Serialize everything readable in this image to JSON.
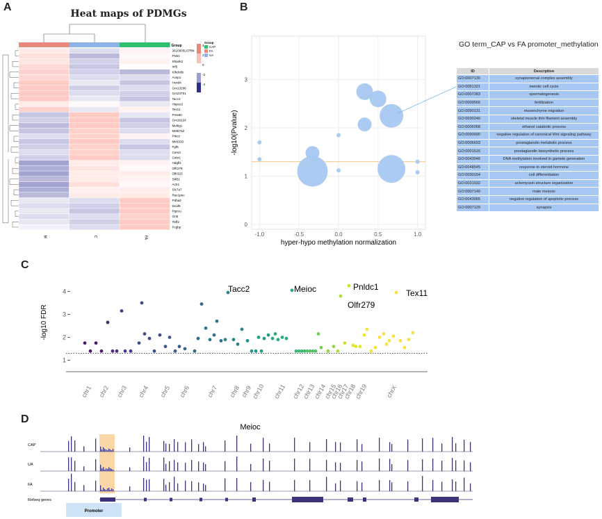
{
  "panels": {
    "a": "A",
    "b": "B",
    "c": "C",
    "d": "D"
  },
  "heatmap": {
    "title": "Heat maps of PDMGs",
    "group_header": "Group",
    "genes": [
      "2610005L07Rik",
      "Plvk1",
      "Shank2",
      "Inf5",
      "Klhdc8b",
      "Acsp1",
      "Hoxd4",
      "Gm13296",
      "Gm23701",
      "Tacc2",
      "Hspce2",
      "Tex11",
      "Prss60",
      "Gm16124",
      "Meltig1",
      "Mettl7a2",
      "Prkcz",
      "Mir6333",
      "Fgf6",
      "Cers3",
      "Cebr1",
      "Hdgfl1",
      "Olfr279",
      "Olfr323",
      "Slk51",
      "Actr1",
      "Slc7a7",
      "Rac1poc",
      "Pdha2",
      "Dcaf6",
      "Ptprcu",
      "Gnb",
      "Tbff2",
      "Fcgbp"
    ],
    "columns": [
      "M",
      "C",
      "FA"
    ],
    "legend": {
      "title": "Group",
      "groups": [
        "CAP",
        "FA",
        "UA"
      ],
      "scale": [
        "4",
        "2",
        "0",
        "-2",
        "-4"
      ]
    },
    "colors": {
      "CAP": "#2fbf71",
      "FA": "#e8897a",
      "UA": "#8fb3e6",
      "high": "#e8897a",
      "low": "#2b2f8a"
    }
  },
  "go_bubble": {
    "title": "GO term_CAP vs FA promoter_methylation",
    "ylabel": "-log10(Pvalue)",
    "xlabel": "hyper-hypo methylation normalization",
    "x_ticks": [
      "-1.0",
      "-0.5",
      "0.0",
      "0.5",
      "1.0"
    ],
    "y_ticks": [
      "0",
      "1",
      "2",
      "3"
    ],
    "chart_data": {
      "type": "scatter",
      "xlim": [
        -1.1,
        1.1
      ],
      "ylim": [
        -0.1,
        3.9
      ],
      "threshold": 1.3,
      "points": [
        {
          "x": 0.33,
          "y": 2.75,
          "s": 12
        },
        {
          "x": 0.5,
          "y": 2.6,
          "s": 12
        },
        {
          "x": 0.67,
          "y": 2.25,
          "s": 17
        },
        {
          "x": 0.33,
          "y": 2.07,
          "s": 10
        },
        {
          "x": -0.33,
          "y": 1.48,
          "s": 10
        },
        {
          "x": -0.33,
          "y": 1.1,
          "s": 22
        },
        {
          "x": 0.67,
          "y": 1.15,
          "s": 20
        },
        {
          "x": -1.0,
          "y": 1.7,
          "s": 3
        },
        {
          "x": -1.0,
          "y": 1.35,
          "s": 3
        },
        {
          "x": 0.0,
          "y": 1.85,
          "s": 3
        },
        {
          "x": 0.0,
          "y": 1.12,
          "s": 3
        },
        {
          "x": 1.0,
          "y": 1.3,
          "s": 3
        },
        {
          "x": 1.0,
          "y": 1.08,
          "s": 3
        }
      ]
    },
    "table": {
      "headers": [
        "ID",
        "Descrption"
      ],
      "rows": [
        [
          "GO:0007130",
          "synaptonemal complex assembly"
        ],
        [
          "GO:0051321",
          "meiotic cell cycle"
        ],
        [
          "GO:0007283",
          "spermatogenesis"
        ],
        [
          "GO:0009566",
          "fertilization"
        ],
        [
          "GO:0090131",
          "mesenchyme migration"
        ],
        [
          "GO:0030240",
          "skeletal muscle thin filament assembly"
        ],
        [
          "GO:0006068",
          "ethanol catabolic process"
        ],
        [
          "GO:0090090",
          "negative regulation of canonical Wnt signaling pathway"
        ],
        [
          "GO:0006693",
          "prostaglandin metabolic process"
        ],
        [
          "GO:0001516",
          "prostaglandin biosynthetic process"
        ],
        [
          "GO:0043046",
          "DNA methylation involved in gamete generation"
        ],
        [
          "GO:0048545",
          "response to steroid hormone"
        ],
        [
          "GO:0030154",
          "cell differentiation"
        ],
        [
          "GO:0031032",
          "actomyosin structure organization"
        ],
        [
          "GO:0007140",
          "male meiosis"
        ],
        [
          "GO:0043065",
          "negative regulation of apoptotic process"
        ],
        [
          "GO:0007129",
          "synapsis"
        ]
      ]
    }
  },
  "manhattan": {
    "ylabel": "-log10 FDR",
    "y_ticks": [
      "1",
      "2",
      "3",
      "4"
    ],
    "chromosomes": [
      "chr1",
      "chr2",
      "chr3",
      "chr4",
      "chr5",
      "chr6",
      "chr7",
      "chr8",
      "chr9",
      "chr10",
      "chr11",
      "chr12",
      "chr13",
      "chr14",
      "chr15",
      "chr16",
      "chr17",
      "chr18",
      "chr19",
      "chrX"
    ],
    "labels": [
      "Tacc2",
      "Meioc",
      "Pnldc1",
      "Olfr279",
      "Tex11"
    ],
    "chart_data": {
      "type": "scatter",
      "ylim": [
        0.5,
        4.8
      ],
      "threshold": 1.3,
      "chr_centers": [
        127,
        152,
        178,
        209,
        240,
        268,
        308,
        340,
        357,
        374,
        405,
        432,
        447,
        463,
        478,
        487,
        496,
        506,
        522,
        566
      ],
      "points": [
        {
          "x": 122,
          "y": 1.75,
          "c": 0
        },
        {
          "x": 130,
          "y": 1.4,
          "c": 0
        },
        {
          "x": 138,
          "y": 1.75,
          "c": 0
        },
        {
          "x": 146,
          "y": 1.4,
          "c": 0
        },
        {
          "x": 155,
          "y": 2.65,
          "c": 1
        },
        {
          "x": 162,
          "y": 1.4,
          "c": 1
        },
        {
          "x": 168,
          "y": 1.4,
          "c": 1
        },
        {
          "x": 175,
          "y": 3.15,
          "c": 2
        },
        {
          "x": 180,
          "y": 1.4,
          "c": 2
        },
        {
          "x": 188,
          "y": 1.4,
          "c": 2
        },
        {
          "x": 200,
          "y": 1.75,
          "c": 3
        },
        {
          "x": 204,
          "y": 3.5,
          "c": 3
        },
        {
          "x": 208,
          "y": 2.15,
          "c": 3
        },
        {
          "x": 215,
          "y": 1.95,
          "c": 3
        },
        {
          "x": 222,
          "y": 1.4,
          "c": 3
        },
        {
          "x": 230,
          "y": 2.1,
          "c": 3
        },
        {
          "x": 238,
          "y": 1.6,
          "c": 4
        },
        {
          "x": 244,
          "y": 2.0,
          "c": 4
        },
        {
          "x": 252,
          "y": 1.4,
          "c": 4
        },
        {
          "x": 258,
          "y": 1.6,
          "c": 4
        },
        {
          "x": 266,
          "y": 1.5,
          "c": 5
        },
        {
          "x": 280,
          "y": 1.4,
          "c": 5
        },
        {
          "x": 285,
          "y": 1.95,
          "c": 5
        },
        {
          "x": 290,
          "y": 3.45,
          "c": 5
        },
        {
          "x": 296,
          "y": 2.4,
          "c": 6
        },
        {
          "x": 302,
          "y": 1.9,
          "c": 6
        },
        {
          "x": 308,
          "y": 2.1,
          "c": 6
        },
        {
          "x": 312,
          "y": 2.7,
          "c": 6
        },
        {
          "x": 318,
          "y": 1.85,
          "c": 6
        },
        {
          "x": 324,
          "y": 1.9,
          "c": 7
        },
        {
          "x": 328,
          "y": 3.95,
          "c": 7
        },
        {
          "x": 336,
          "y": 1.9,
          "c": 7
        },
        {
          "x": 342,
          "y": 1.7,
          "c": 7
        },
        {
          "x": 348,
          "y": 2.35,
          "c": 7
        },
        {
          "x": 356,
          "y": 1.85,
          "c": 8
        },
        {
          "x": 362,
          "y": 1.4,
          "c": 8
        },
        {
          "x": 368,
          "y": 1.4,
          "c": 8
        },
        {
          "x": 372,
          "y": 2.0,
          "c": 9
        },
        {
          "x": 376,
          "y": 1.4,
          "c": 9
        },
        {
          "x": 380,
          "y": 1.95,
          "c": 9
        },
        {
          "x": 386,
          "y": 2.1,
          "c": 9
        },
        {
          "x": 392,
          "y": 1.95,
          "c": 10
        },
        {
          "x": 396,
          "y": 2.15,
          "c": 10
        },
        {
          "x": 400,
          "y": 1.9,
          "c": 10
        },
        {
          "x": 406,
          "y": 2.0,
          "c": 10
        },
        {
          "x": 412,
          "y": 1.95,
          "c": 10
        },
        {
          "x": 420,
          "y": 4.05,
          "c": 10
        },
        {
          "x": 426,
          "y": 1.4,
          "c": 11
        },
        {
          "x": 430,
          "y": 1.4,
          "c": 11
        },
        {
          "x": 434,
          "y": 1.4,
          "c": 11
        },
        {
          "x": 438,
          "y": 1.4,
          "c": 11
        },
        {
          "x": 442,
          "y": 1.4,
          "c": 12
        },
        {
          "x": 446,
          "y": 1.4,
          "c": 12
        },
        {
          "x": 450,
          "y": 1.4,
          "c": 12
        },
        {
          "x": 454,
          "y": 1.4,
          "c": 12
        },
        {
          "x": 458,
          "y": 2.15,
          "c": 13
        },
        {
          "x": 462,
          "y": 1.55,
          "c": 13
        },
        {
          "x": 472,
          "y": 1.4,
          "c": 14
        },
        {
          "x": 480,
          "y": 1.6,
          "c": 14
        },
        {
          "x": 486,
          "y": 1.4,
          "c": 15
        },
        {
          "x": 490,
          "y": 3.8,
          "c": 15
        },
        {
          "x": 496,
          "y": 1.75,
          "c": 16
        },
        {
          "x": 502,
          "y": 4.25,
          "c": 16
        },
        {
          "x": 508,
          "y": 1.65,
          "c": 17
        },
        {
          "x": 512,
          "y": 1.6,
          "c": 17
        },
        {
          "x": 518,
          "y": 1.6,
          "c": 17
        },
        {
          "x": 524,
          "y": 2.1,
          "c": 18
        },
        {
          "x": 528,
          "y": 2.35,
          "c": 18
        },
        {
          "x": 534,
          "y": 1.4,
          "c": 18
        },
        {
          "x": 540,
          "y": 1.55,
          "c": 18
        },
        {
          "x": 546,
          "y": 2.0,
          "c": 19
        },
        {
          "x": 552,
          "y": 2.15,
          "c": 19
        },
        {
          "x": 556,
          "y": 1.7,
          "c": 19
        },
        {
          "x": 560,
          "y": 1.85,
          "c": 19
        },
        {
          "x": 566,
          "y": 2.05,
          "c": 19
        },
        {
          "x": 570,
          "y": 3.95,
          "c": 19
        },
        {
          "x": 576,
          "y": 1.85,
          "c": 19
        },
        {
          "x": 582,
          "y": 1.55,
          "c": 19
        },
        {
          "x": 588,
          "y": 1.9,
          "c": 19
        },
        {
          "x": 594,
          "y": 2.2,
          "c": 19
        }
      ]
    }
  },
  "track": {
    "title": "Meioc",
    "samples": [
      "CAP",
      "UA",
      "FA"
    ],
    "refseq_label": "Refseq genes",
    "promoter_label": "Promoter",
    "colors": {
      "signal": "#3a3378",
      "highlight": "#fbd7a8",
      "promoter": "#cfe3f7"
    }
  }
}
